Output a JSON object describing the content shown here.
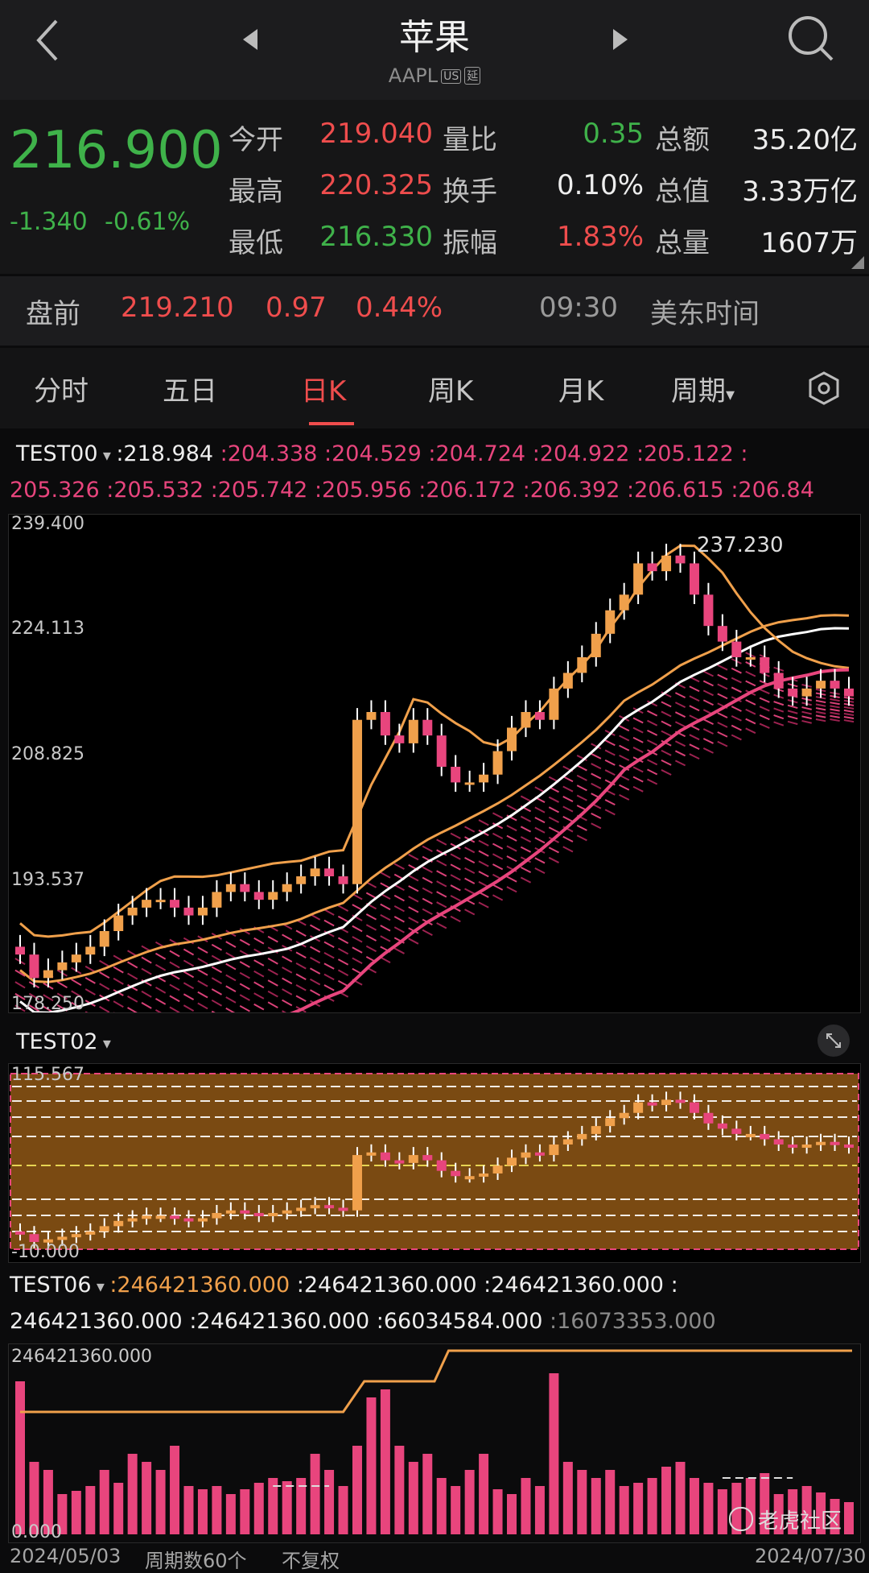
{
  "header": {
    "title": "苹果",
    "ticker": "AAPL",
    "badge_us": "US",
    "badge_delay": "延"
  },
  "quote": {
    "price": "216.900",
    "change": "-1.340",
    "change_pct": "-0.61%",
    "labels": {
      "open": "今开",
      "high": "最高",
      "low": "最低",
      "vol_ratio": "量比",
      "turnover": "换手",
      "amplitude": "振幅",
      "amount": "总额",
      "mktcap": "总值",
      "volume": "总量"
    },
    "values": {
      "open": "219.040",
      "high": "220.325",
      "low": "216.330",
      "vol_ratio": "0.35",
      "turnover": "0.10%",
      "amplitude": "1.83%",
      "amount": "35.20亿",
      "mktcap": "3.33万亿",
      "volume": "1607万"
    }
  },
  "premarket": {
    "label": "盘前",
    "price": "219.210",
    "change": "0.97",
    "pct": "0.44%",
    "time": "09:30",
    "tz": "美东时间"
  },
  "tabs": [
    "分时",
    "五日",
    "日K",
    "周K",
    "月K",
    "周期"
  ],
  "active_tab": "日K",
  "ind0": {
    "name": "TEST00",
    "line1": [
      ":218.984",
      ":204.338",
      ":204.529",
      ":204.724",
      ":204.922",
      ":205.122",
      ":"
    ],
    "line2": [
      "205.326",
      ":205.532",
      ":205.742",
      ":205.956",
      ":206.172",
      ":206.392",
      ":206.615",
      ":206.84"
    ]
  },
  "main_axis": {
    "t0": "239.400",
    "t1": "224.113",
    "t2": "208.825",
    "t3": "193.537",
    "t4": "178.250",
    "max_label": "237.230"
  },
  "ind2": {
    "name": "TEST02",
    "top": "115.567",
    "bottom": "-10.000"
  },
  "ind6": {
    "name": "TEST06",
    "line1": [
      ":246421360.000",
      ":246421360.000",
      ":246421360.000",
      ":"
    ],
    "line2": [
      "246421360.000",
      ":246421360.000",
      ":66034584.000",
      ":16073353.000"
    ],
    "top": "246421360.000",
    "bottom": "0.000"
  },
  "footer": {
    "start": "2024/05/03",
    "period": "周期数60个",
    "adjust": "不复权",
    "end": "2024/07/30",
    "watermark": "老虎社区"
  },
  "chart_data": {
    "type": "candlestick",
    "title": "AAPL 日K",
    "ylim": [
      178.25,
      239.4
    ],
    "x": [
      "2024/05/03",
      "2024/07/30"
    ],
    "closes": [
      184,
      181,
      182,
      183,
      184,
      185,
      187,
      189,
      190,
      191,
      191,
      190,
      189,
      190,
      192,
      193,
      192,
      191,
      192,
      193,
      194,
      195,
      194,
      193,
      214,
      215,
      212,
      211,
      214,
      212,
      208,
      206,
      206,
      207,
      210,
      213,
      215,
      214,
      218,
      220,
      222,
      225,
      228,
      230,
      234,
      233,
      235,
      234,
      230,
      226,
      224,
      222,
      222,
      220,
      218,
      217,
      218,
      219,
      218,
      217
    ],
    "volumes_rel": [
      0.95,
      0.45,
      0.4,
      0.25,
      0.27,
      0.3,
      0.4,
      0.32,
      0.5,
      0.45,
      0.4,
      0.55,
      0.3,
      0.28,
      0.3,
      0.25,
      0.28,
      0.32,
      0.35,
      0.33,
      0.35,
      0.5,
      0.4,
      0.3,
      0.55,
      0.85,
      0.9,
      0.55,
      0.45,
      0.5,
      0.35,
      0.3,
      0.4,
      0.5,
      0.28,
      0.25,
      0.35,
      0.3,
      1.0,
      0.45,
      0.4,
      0.35,
      0.4,
      0.3,
      0.32,
      0.35,
      0.42,
      0.45,
      0.35,
      0.32,
      0.28,
      0.32,
      0.35,
      0.38,
      0.25,
      0.28,
      0.3,
      0.26,
      0.22,
      0.2
    ]
  }
}
